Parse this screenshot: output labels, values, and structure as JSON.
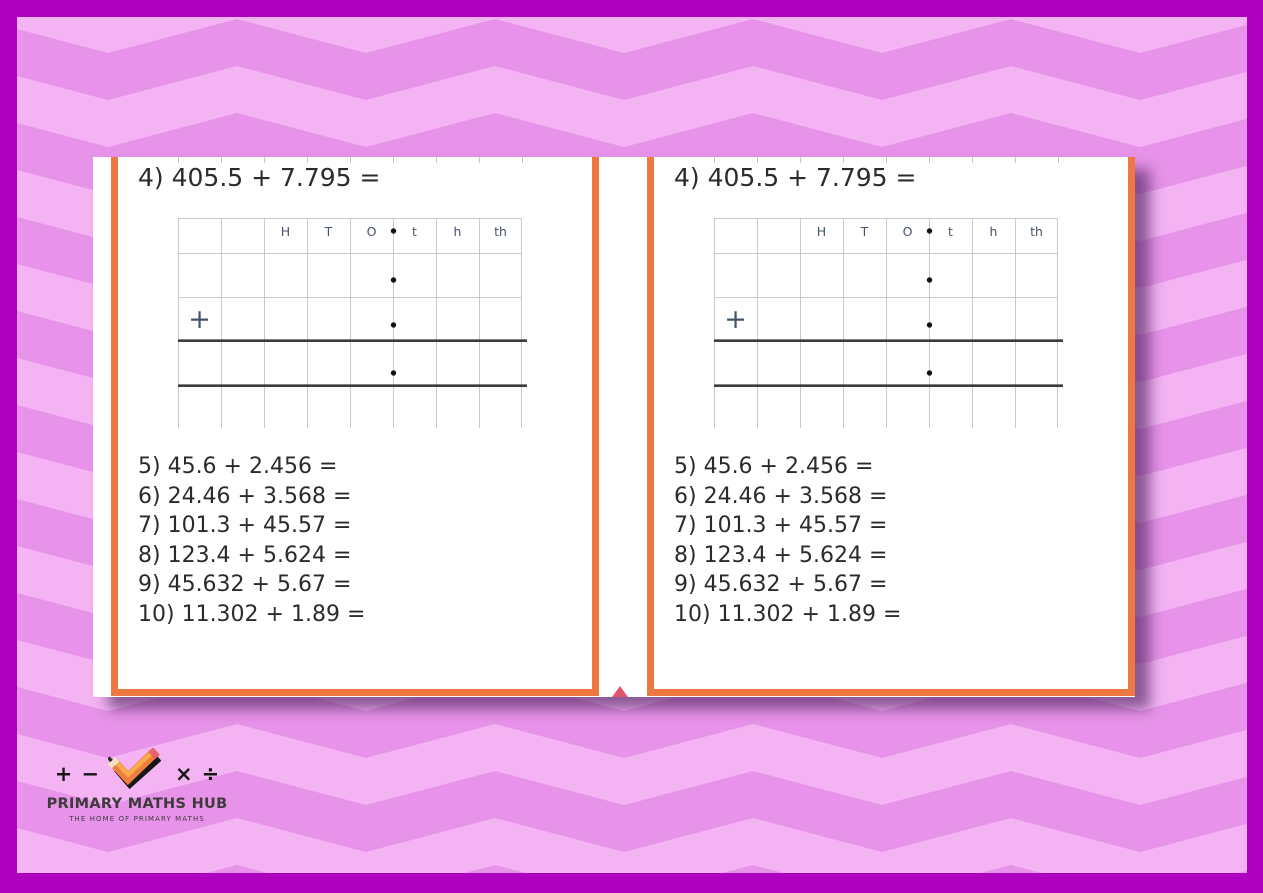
{
  "worksheet": {
    "heading": "4) 405.5 + 7.795 =",
    "grid": {
      "column_headers": [
        "H",
        "T",
        "O",
        "t",
        "h",
        "th"
      ],
      "operator": "+",
      "decimal_mark": "•"
    },
    "questions": [
      "5) 45.6 + 2.456 =",
      "6) 24.46 + 3.568 =",
      "7) 101.3 + 45.57 =",
      "8) 123.4 + 5.624 =",
      "9) 45.632 + 5.67 =",
      "10) 11.302 + 1.89 ="
    ]
  },
  "logo": {
    "symbols": {
      "plus": "+",
      "minus": "−",
      "times": "×",
      "divide": "÷"
    },
    "title": "PRIMARY MATHS HUB",
    "tagline": "THE HOME OF PRIMARY MATHS"
  },
  "colors": {
    "border": "#ae00bf",
    "chevron_light": "#f4b4f3",
    "chevron_dark": "#e793e9",
    "page_accent_orange": "#ed7842",
    "grid_line": "#c9c9c9",
    "heading_text": "#2e2a2c",
    "place_value_text": "#44546a",
    "fold_arrow": "#dd5669"
  }
}
